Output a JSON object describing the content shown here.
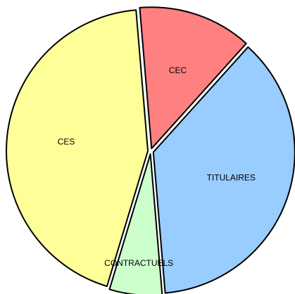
{
  "chart_data": {
    "type": "pie",
    "categories": [
      "CEC",
      "TITULAIRES",
      "CONTRACTUELS",
      "CES"
    ],
    "values": [
      13,
      37,
      6,
      44
    ],
    "colors": [
      "#ff8080",
      "#99ccff",
      "#ccffcc",
      "#ffff99"
    ]
  }
}
